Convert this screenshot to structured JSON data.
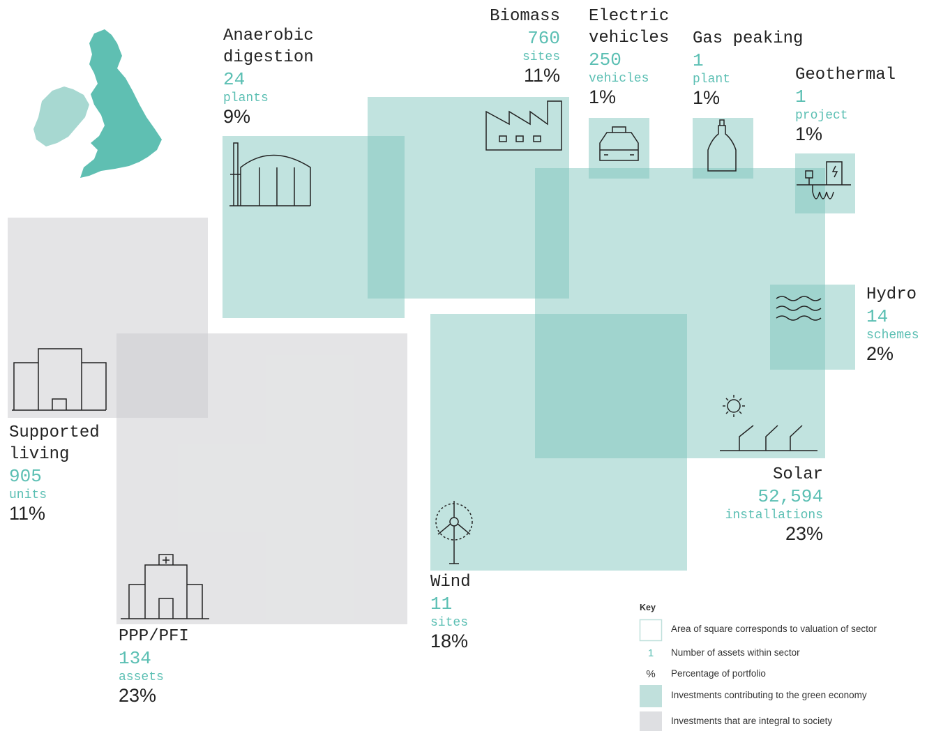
{
  "sectors": [
    {
      "name": "Anaerobic digestion",
      "count": "24",
      "unit": "plants",
      "percent": "9%",
      "group": "green"
    },
    {
      "name": "Biomass",
      "count": "760",
      "unit": "sites",
      "percent": "11%",
      "group": "green"
    },
    {
      "name": "Electric vehicles",
      "count": "250",
      "unit": "vehicles",
      "percent": "1%",
      "group": "green"
    },
    {
      "name": "Gas peaking",
      "count": "1",
      "unit": "plant",
      "percent": "1%",
      "group": "green"
    },
    {
      "name": "Geothermal",
      "count": "1",
      "unit": "project",
      "percent": "1%",
      "group": "green"
    },
    {
      "name": "Solar",
      "count": "52,594",
      "unit": "installations",
      "percent": "23%",
      "group": "green"
    },
    {
      "name": "Hydro",
      "count": "14",
      "unit": "schemes",
      "percent": "2%",
      "group": "green"
    },
    {
      "name": "Wind",
      "count": "11",
      "unit": "sites",
      "percent": "18%",
      "group": "green"
    },
    {
      "name": "Supported living",
      "count": "905",
      "unit": "units",
      "percent": "11%",
      "group": "society"
    },
    {
      "name": "PPP/PFI",
      "count": "134",
      "unit": "assets",
      "percent": "23%",
      "group": "society"
    }
  ],
  "key": {
    "title": "Key",
    "items": [
      {
        "symbol": "",
        "text": "Area of square corresponds to valuation of sector"
      },
      {
        "symbol": "1",
        "text": "Number of assets within sector"
      },
      {
        "symbol": "%",
        "text": "Percentage of portfolio"
      },
      {
        "symbol": "",
        "text": "Investments contributing to the green economy"
      },
      {
        "symbol": "",
        "text": "Investments that are integral to society"
      }
    ]
  }
}
